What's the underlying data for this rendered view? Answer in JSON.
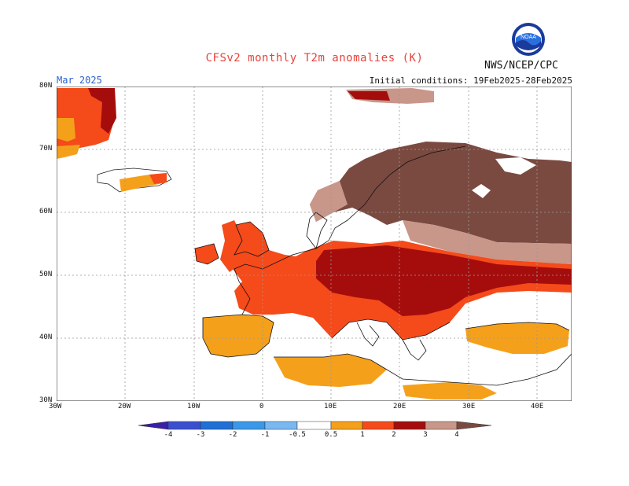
{
  "header": {
    "title": "CFSv2 monthly T2m anomalies (K)",
    "org": "NWS/NCEP/CPC",
    "logo_text": "NOAA",
    "month": "Mar 2025",
    "initial_conditions": "Initial conditions: 19Feb2025-28Feb2025"
  },
  "axes": {
    "lat_labels": [
      "80N",
      "70N",
      "60N",
      "50N",
      "40N",
      "30N"
    ],
    "lon_labels": [
      "30W",
      "20W",
      "10W",
      "0",
      "10E",
      "20E",
      "30E",
      "40E"
    ]
  },
  "colorbar": {
    "labels": [
      "-4",
      "-3",
      "-2",
      "-1",
      "-0.5",
      "0.5",
      "1",
      "2",
      "3",
      "4"
    ],
    "colors": [
      "#3a1fa8",
      "#3a4fd0",
      "#1f6fd6",
      "#3a98e8",
      "#7ab8f2",
      "#ffffff",
      "#f5a01a",
      "#f54a1a",
      "#a50d0d",
      "#c9968a",
      "#7a4a40"
    ]
  },
  "legend_colors": {
    "c05": "#f5a01a",
    "c1": "#f54a1a",
    "c2": "#a50d0d",
    "c3": "#c9968a",
    "c4": "#7a4a40"
  }
}
